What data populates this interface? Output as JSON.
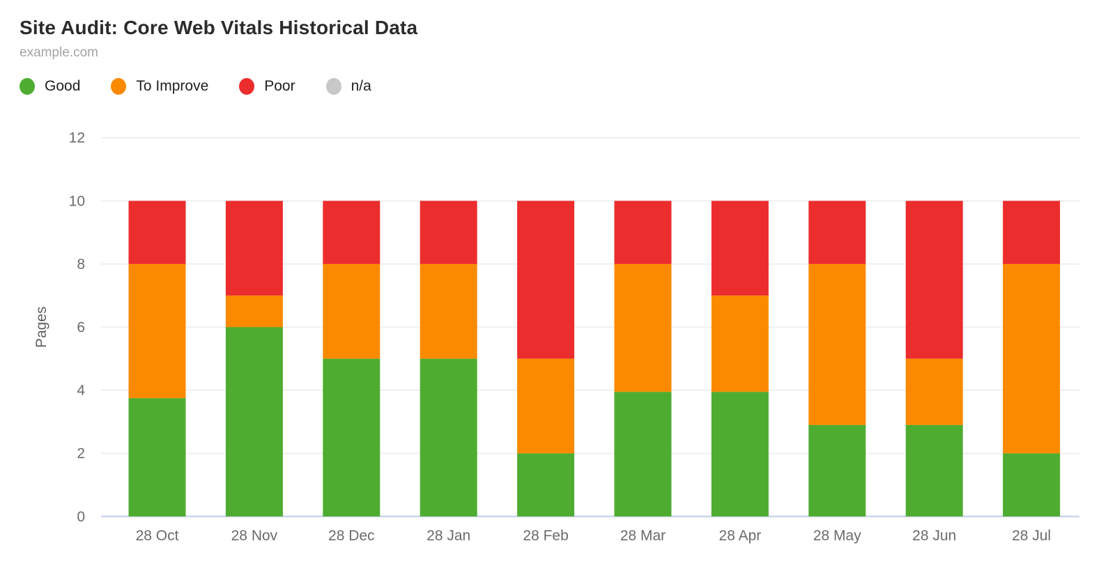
{
  "header": {
    "title": "Site Audit: Core Web Vitals Historical Data",
    "subtitle": "example.com"
  },
  "legend": [
    {
      "label": "Good",
      "color": "#4EAC31"
    },
    {
      "label": "To Improve",
      "color": "#FC8A00"
    },
    {
      "label": "Poor",
      "color": "#EC2D2D"
    },
    {
      "label": "n/a",
      "color": "#C8C8C8"
    }
  ],
  "chart_data": {
    "type": "bar",
    "stacked": true,
    "title": "Site Audit: Core Web Vitals Historical Data",
    "subtitle": "example.com",
    "xlabel": "",
    "ylabel": "Pages",
    "ylim": [
      0,
      12
    ],
    "yticks": [
      0,
      2,
      4,
      6,
      8,
      10,
      12
    ],
    "grid": true,
    "legend_position": "top",
    "categories": [
      "28 Oct",
      "28 Nov",
      "28 Dec",
      "28 Jan",
      "28 Feb",
      "28 Mar",
      "28 Apr",
      "28 May",
      "28 Jun",
      "28 Jul"
    ],
    "series": [
      {
        "name": "Good",
        "color": "#4EAC31",
        "values": [
          3.75,
          6,
          5,
          5,
          2,
          3.95,
          3.95,
          2.9,
          2.9,
          2
        ]
      },
      {
        "name": "To Improve",
        "color": "#FC8A00",
        "values": [
          4.25,
          1,
          3,
          3,
          3,
          4.05,
          3.05,
          5.1,
          2.1,
          6
        ]
      },
      {
        "name": "Poor",
        "color": "#EC2D2D",
        "values": [
          2,
          3,
          2,
          2,
          5,
          2,
          3,
          2,
          5,
          2
        ]
      },
      {
        "name": "n/a",
        "color": "#C8C8C8",
        "values": [
          0,
          0,
          0,
          0,
          0,
          0,
          0,
          0,
          0,
          0
        ]
      }
    ],
    "bar_totals": [
      10,
      10,
      10,
      10,
      10,
      10,
      10,
      10,
      10,
      10
    ],
    "grid_color": "#ECECEC",
    "zero_line_color": "#CBD5EA",
    "tick_label_color": "#6B6B6B",
    "axis_title_color": "#5F5F5F"
  }
}
